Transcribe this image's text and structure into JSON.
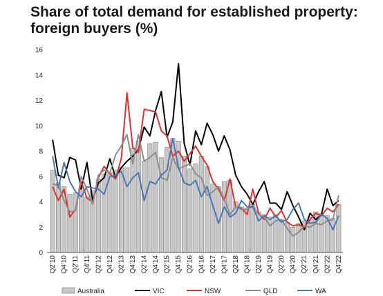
{
  "chart_data": {
    "type": "bar",
    "title": "Share of total demand for established property: foreign buyers (%)",
    "xlabel": "",
    "ylabel": "",
    "ylim": [
      0,
      16
    ],
    "yticks": [
      0,
      2,
      4,
      6,
      8,
      10,
      12,
      14,
      16
    ],
    "grid": false,
    "legend_position": "bottom",
    "categories": [
      "Q2'10",
      "Q3'10",
      "Q4'10",
      "Q1'11",
      "Q2'11",
      "Q3'11",
      "Q4'11",
      "Q1'12",
      "Q2'12",
      "Q3'12",
      "Q4'12",
      "Q1'13",
      "Q2'13",
      "Q3'13",
      "Q4'13",
      "Q1'14",
      "Q2'14",
      "Q3'14",
      "Q4'14",
      "Q1'15",
      "Q2'15",
      "Q3'15",
      "Q4'15",
      "Q1'16",
      "Q2'16",
      "Q3'16",
      "Q4'16",
      "Q1'17",
      "Q2'17",
      "Q3'17",
      "Q4'17",
      "Q1'18",
      "Q2'18",
      "Q3'18",
      "Q4'18",
      "Q1'19",
      "Q2'19",
      "Q3'19",
      "Q4'19",
      "Q1'20",
      "Q2'20",
      "Q3'20",
      "Q4'20",
      "Q1'21",
      "Q2'21",
      "Q3'21",
      "Q4'21",
      "Q1'22",
      "Q2'22",
      "Q3'22",
      "Q4'22"
    ],
    "tick_labels": [
      "Q2'10",
      "Q4'10",
      "Q2'11",
      "Q4'11",
      "Q2'12",
      "Q4'12",
      "Q2'13",
      "Q4'13",
      "Q2'14",
      "Q4'14",
      "Q2'15",
      "Q4'15",
      "Q2'16",
      "Q4'16",
      "Q2'17",
      "Q4'17",
      "Q2'18",
      "Q4'18",
      "Q2'19",
      "Q4'19",
      "Q2'20",
      "Q4'20",
      "Q2'21",
      "Q4'21",
      "Q2'22",
      "Q4'22"
    ],
    "series": [
      {
        "name": "Australia",
        "kind": "bar",
        "color": "#c8c8c8",
        "values": [
          6.5,
          5.5,
          5.2,
          4.6,
          4.7,
          4.9,
          4.4,
          4.9,
          5.8,
          6.2,
          6.3,
          6.5,
          6.7,
          6.7,
          8.2,
          8.8,
          7.2,
          8.6,
          8.7,
          7.5,
          8.3,
          9.0,
          8.8,
          7.6,
          6.6,
          7.0,
          7.6,
          6.8,
          5.4,
          5.2,
          5.6,
          5.7,
          4.0,
          3.6,
          3.5,
          3.8,
          3.2,
          3.0,
          2.8,
          3.0,
          2.6,
          2.4,
          2.0,
          2.3,
          2.5,
          2.8,
          3.2,
          3.1,
          2.9,
          2.7,
          3.8
        ]
      },
      {
        "name": "VIC",
        "kind": "line",
        "color": "#000000",
        "values": [
          8.9,
          6.1,
          5.9,
          7.5,
          7.3,
          5.0,
          7.1,
          4.1,
          5.5,
          5.9,
          7.4,
          5.9,
          6.7,
          7.2,
          7.6,
          8.1,
          9.9,
          9.2,
          11.2,
          12.7,
          9.1,
          10.3,
          14.9,
          8.6,
          6.9,
          9.6,
          8.5,
          10.2,
          9.3,
          8.0,
          9.2,
          8.1,
          6.1,
          5.2,
          4.6,
          3.8,
          4.8,
          5.6,
          3.9,
          3.9,
          3.4,
          4.8,
          3.7,
          2.8,
          1.8,
          3.1,
          2.6,
          3.0,
          5.0,
          3.7,
          4.1
        ]
      },
      {
        "name": "NSW",
        "kind": "line",
        "color": "#e03030",
        "values": [
          5.2,
          4.1,
          5.0,
          2.8,
          3.4,
          5.6,
          4.3,
          4.0,
          5.9,
          6.8,
          6.2,
          5.8,
          7.4,
          12.6,
          8.3,
          7.9,
          11.3,
          11.2,
          11.1,
          9.6,
          9.2,
          7.6,
          8.0,
          7.2,
          7.8,
          8.4,
          7.6,
          6.9,
          5.6,
          5.0,
          4.1,
          5.8,
          3.6,
          3.5,
          3.0,
          5.0,
          3.1,
          2.6,
          3.5,
          2.8,
          3.3,
          2.4,
          2.1,
          2.2,
          2.0,
          2.6,
          3.1,
          2.9,
          3.5,
          3.2,
          3.8
        ]
      },
      {
        "name": "QLD",
        "kind": "line",
        "color": "#8c8c8c",
        "values": [
          5.4,
          5.3,
          4.1,
          3.2,
          3.3,
          6.0,
          5.0,
          3.8,
          6.1,
          6.5,
          6.3,
          7.7,
          8.4,
          9.3,
          7.0,
          9.3,
          7.2,
          7.5,
          7.9,
          5.9,
          5.7,
          7.5,
          6.6,
          6.8,
          7.0,
          6.2,
          5.9,
          4.5,
          4.8,
          5.2,
          4.2,
          3.0,
          3.6,
          3.4,
          3.4,
          3.7,
          3.0,
          2.8,
          2.1,
          2.5,
          2.6,
          1.9,
          1.3,
          1.6,
          2.1,
          2.0,
          2.3,
          2.2,
          2.5,
          2.6,
          4.5
        ]
      },
      {
        "name": "WA",
        "kind": "line",
        "color": "#4a76b8",
        "values": [
          7.6,
          5.1,
          7.1,
          5.6,
          4.8,
          4.4,
          5.2,
          5.1,
          5.0,
          4.6,
          6.0,
          6.1,
          6.4,
          5.2,
          5.9,
          6.3,
          4.1,
          5.6,
          5.4,
          6.1,
          6.5,
          9.0,
          6.7,
          5.5,
          5.3,
          5.7,
          4.4,
          5.2,
          3.7,
          2.3,
          3.6,
          2.8,
          3.1,
          4.1,
          3.6,
          3.6,
          2.5,
          2.9,
          2.6,
          2.9,
          2.4,
          2.6,
          3.4,
          3.9,
          2.6,
          2.3,
          2.4,
          3.0,
          2.7,
          1.8,
          2.9
        ]
      }
    ]
  }
}
